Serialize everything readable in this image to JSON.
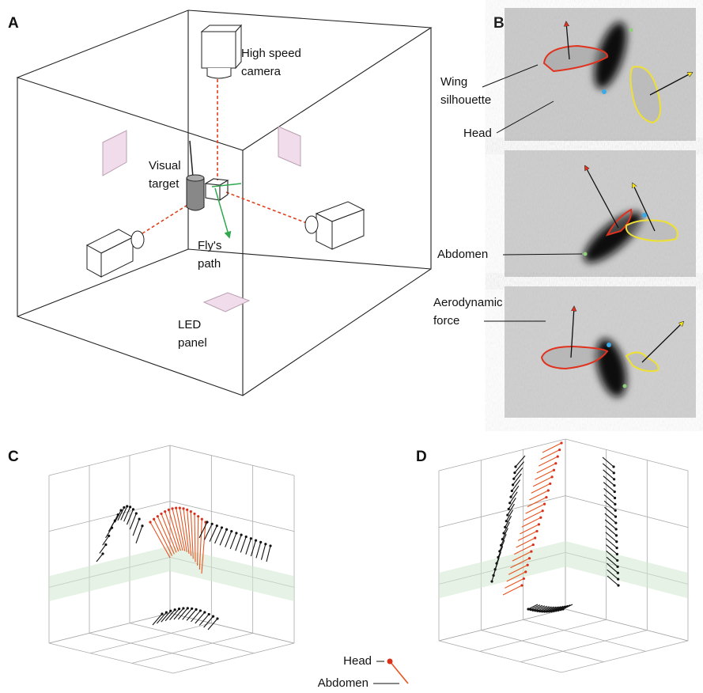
{
  "panel_labels": [
    "A",
    "B",
    "C",
    "D"
  ],
  "panel_a": {
    "camera": [
      "High speed",
      "camera"
    ],
    "visual_target": [
      "Visual",
      "target"
    ],
    "flys_path": [
      "Fly's",
      "path"
    ],
    "led_panel": [
      "LED",
      "panel"
    ]
  },
  "panel_b": {
    "wing_silhouette": [
      "Wing",
      "silhouette"
    ],
    "head": "Head",
    "abdomen": "Abdomen",
    "aerodynamic_force": [
      "Aerodynamic",
      "force"
    ]
  },
  "legend": {
    "head": "Head",
    "abdomen": "Abdomen"
  }
}
